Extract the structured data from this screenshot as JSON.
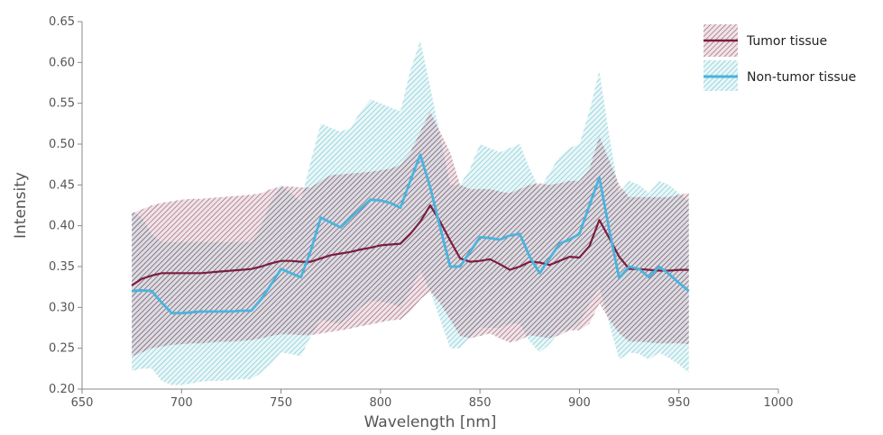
{
  "chart_data": {
    "type": "line",
    "title": "",
    "xlabel": "Wavelength [nm]",
    "ylabel": "Intensity",
    "xlim": [
      650,
      1000
    ],
    "ylim": [
      0.2,
      0.65
    ],
    "xticks": [
      650,
      700,
      750,
      800,
      850,
      900,
      950,
      1000
    ],
    "xtick_labels": [
      "650",
      "700",
      "750",
      "800",
      "850",
      "900",
      "950",
      "1000"
    ],
    "yticks": [
      0.2,
      0.25,
      0.3,
      0.35,
      0.4,
      0.45,
      0.5,
      0.55,
      0.6,
      0.65
    ],
    "ytick_labels": [
      "0.20",
      "0.25",
      "0.30",
      "0.35",
      "0.40",
      "0.45",
      "0.50",
      "0.55",
      "0.60",
      "0.65"
    ],
    "grid": false,
    "legend_position": "top-right",
    "x": [
      675,
      680,
      685,
      690,
      695,
      700,
      705,
      710,
      715,
      720,
      725,
      730,
      735,
      740,
      745,
      750,
      755,
      760,
      765,
      770,
      775,
      780,
      785,
      790,
      795,
      800,
      805,
      810,
      815,
      820,
      825,
      830,
      835,
      840,
      845,
      850,
      855,
      860,
      865,
      870,
      875,
      880,
      885,
      890,
      895,
      900,
      905,
      910,
      915,
      920,
      925,
      930,
      935,
      940,
      945,
      950,
      955
    ],
    "series": [
      {
        "name": "Tumor tissue",
        "color": "#7b1e3e",
        "fill_color": "#7b1e3e",
        "values": [
          0.327,
          0.335,
          0.339,
          0.342,
          0.342,
          0.342,
          0.342,
          0.342,
          0.343,
          0.344,
          0.345,
          0.346,
          0.347,
          0.35,
          0.354,
          0.357,
          0.357,
          0.356,
          0.356,
          0.36,
          0.364,
          0.366,
          0.368,
          0.371,
          0.373,
          0.376,
          0.377,
          0.378,
          0.39,
          0.405,
          0.425,
          0.405,
          0.382,
          0.36,
          0.356,
          0.357,
          0.359,
          0.353,
          0.346,
          0.35,
          0.356,
          0.355,
          0.352,
          0.357,
          0.362,
          0.361,
          0.375,
          0.407,
          0.385,
          0.362,
          0.347,
          0.347,
          0.346,
          0.345,
          0.345,
          0.346,
          0.346
        ],
        "upper": [
          0.415,
          0.42,
          0.425,
          0.428,
          0.43,
          0.432,
          0.433,
          0.433,
          0.434,
          0.435,
          0.436,
          0.437,
          0.438,
          0.44,
          0.445,
          0.448,
          0.448,
          0.447,
          0.447,
          0.455,
          0.462,
          0.463,
          0.464,
          0.465,
          0.466,
          0.468,
          0.47,
          0.475,
          0.49,
          0.515,
          0.54,
          0.515,
          0.49,
          0.45,
          0.445,
          0.445,
          0.445,
          0.442,
          0.44,
          0.445,
          0.45,
          0.452,
          0.45,
          0.452,
          0.455,
          0.455,
          0.47,
          0.51,
          0.48,
          0.45,
          0.435,
          0.435,
          0.435,
          0.435,
          0.435,
          0.438,
          0.44
        ],
        "lower": [
          0.24,
          0.245,
          0.25,
          0.252,
          0.254,
          0.255,
          0.256,
          0.256,
          0.257,
          0.258,
          0.258,
          0.259,
          0.26,
          0.262,
          0.265,
          0.267,
          0.267,
          0.266,
          0.266,
          0.268,
          0.27,
          0.272,
          0.274,
          0.277,
          0.279,
          0.282,
          0.284,
          0.285,
          0.295,
          0.31,
          0.32,
          0.305,
          0.285,
          0.265,
          0.262,
          0.265,
          0.268,
          0.262,
          0.257,
          0.26,
          0.266,
          0.264,
          0.262,
          0.266,
          0.272,
          0.272,
          0.28,
          0.305,
          0.285,
          0.268,
          0.258,
          0.258,
          0.257,
          0.256,
          0.256,
          0.256,
          0.255
        ]
      },
      {
        "name": "Non-tumor tissue",
        "color": "#4bb3dd",
        "fill_color": "#4bb8c4",
        "values": [
          0.32,
          0.321,
          0.32,
          0.306,
          0.293,
          0.293,
          0.294,
          0.295,
          0.295,
          0.295,
          0.295,
          0.296,
          0.296,
          0.31,
          0.328,
          0.347,
          0.342,
          0.337,
          0.37,
          0.41,
          0.404,
          0.398,
          0.41,
          0.421,
          0.432,
          0.431,
          0.428,
          0.422,
          0.455,
          0.487,
          0.447,
          0.398,
          0.35,
          0.35,
          0.368,
          0.386,
          0.385,
          0.383,
          0.388,
          0.39,
          0.362,
          0.342,
          0.36,
          0.378,
          0.383,
          0.39,
          0.425,
          0.459,
          0.395,
          0.336,
          0.35,
          0.347,
          0.337,
          0.35,
          0.341,
          0.33,
          0.32
        ],
        "upper": [
          0.418,
          0.41,
          0.39,
          0.38,
          0.38,
          0.38,
          0.38,
          0.38,
          0.38,
          0.38,
          0.38,
          0.38,
          0.38,
          0.4,
          0.43,
          0.45,
          0.44,
          0.43,
          0.48,
          0.525,
          0.52,
          0.515,
          0.52,
          0.54,
          0.555,
          0.55,
          0.545,
          0.54,
          0.59,
          0.627,
          0.57,
          0.51,
          0.45,
          0.45,
          0.47,
          0.5,
          0.495,
          0.49,
          0.495,
          0.5,
          0.47,
          0.445,
          0.465,
          0.485,
          0.495,
          0.5,
          0.54,
          0.59,
          0.51,
          0.44,
          0.455,
          0.45,
          0.44,
          0.455,
          0.45,
          0.44,
          0.43
        ],
        "lower": [
          0.222,
          0.225,
          0.225,
          0.21,
          0.205,
          0.205,
          0.207,
          0.209,
          0.21,
          0.21,
          0.211,
          0.212,
          0.212,
          0.22,
          0.23,
          0.245,
          0.243,
          0.24,
          0.265,
          0.285,
          0.282,
          0.28,
          0.29,
          0.3,
          0.308,
          0.307,
          0.305,
          0.3,
          0.32,
          0.345,
          0.32,
          0.285,
          0.25,
          0.25,
          0.263,
          0.275,
          0.275,
          0.275,
          0.28,
          0.28,
          0.258,
          0.245,
          0.255,
          0.27,
          0.273,
          0.28,
          0.305,
          0.325,
          0.28,
          0.236,
          0.245,
          0.243,
          0.236,
          0.245,
          0.238,
          0.23,
          0.22
        ]
      }
    ]
  }
}
